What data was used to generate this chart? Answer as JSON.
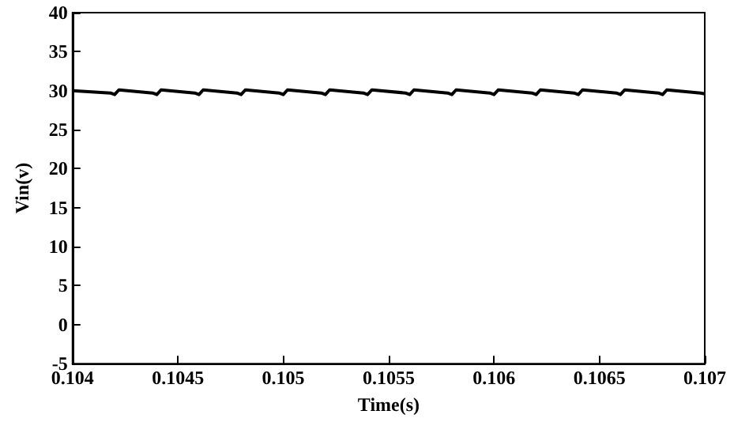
{
  "chart_data": {
    "type": "line",
    "xlabel": "Time(s)",
    "ylabel": "Vin(v)",
    "x": [
      0.104,
      0.10418,
      0.1042,
      0.10422,
      0.10438,
      0.1044,
      0.10442,
      0.10458,
      0.1046,
      0.10462,
      0.10478,
      0.1048,
      0.10482,
      0.10498,
      0.105,
      0.10502,
      0.10518,
      0.1052,
      0.10522,
      0.10538,
      0.1054,
      0.10542,
      0.10558,
      0.1056,
      0.10562,
      0.10578,
      0.1058,
      0.10582,
      0.10598,
      0.106,
      0.10602,
      0.10618,
      0.1062,
      0.10622,
      0.10638,
      0.1064,
      0.10642,
      0.10658,
      0.1066,
      0.10662,
      0.10678,
      0.1068,
      0.10682,
      0.10698,
      0.107
    ],
    "series": [
      {
        "color": "#000000",
        "values": [
          30.0,
          29.7,
          29.5,
          30.1,
          29.7,
          29.5,
          30.1,
          29.7,
          29.5,
          30.1,
          29.7,
          29.5,
          30.1,
          29.7,
          29.5,
          30.1,
          29.7,
          29.5,
          30.1,
          29.7,
          29.5,
          30.1,
          29.7,
          29.5,
          30.1,
          29.7,
          29.5,
          30.1,
          29.7,
          29.5,
          30.1,
          29.7,
          29.5,
          30.1,
          29.7,
          29.5,
          30.1,
          29.7,
          29.5,
          30.1,
          29.7,
          29.5,
          30.1,
          29.7,
          29.6
        ]
      }
    ],
    "xlim": [
      0.104,
      0.107
    ],
    "xticks": [
      0.104,
      0.1045,
      0.105,
      0.1055,
      0.106,
      0.1065,
      0.107
    ],
    "ylim": [
      -5,
      40
    ],
    "yticks": [
      -5,
      0,
      5,
      10,
      15,
      20,
      25,
      30,
      35,
      40
    ],
    "grid": false,
    "marker": "none",
    "line_style": "solid"
  }
}
